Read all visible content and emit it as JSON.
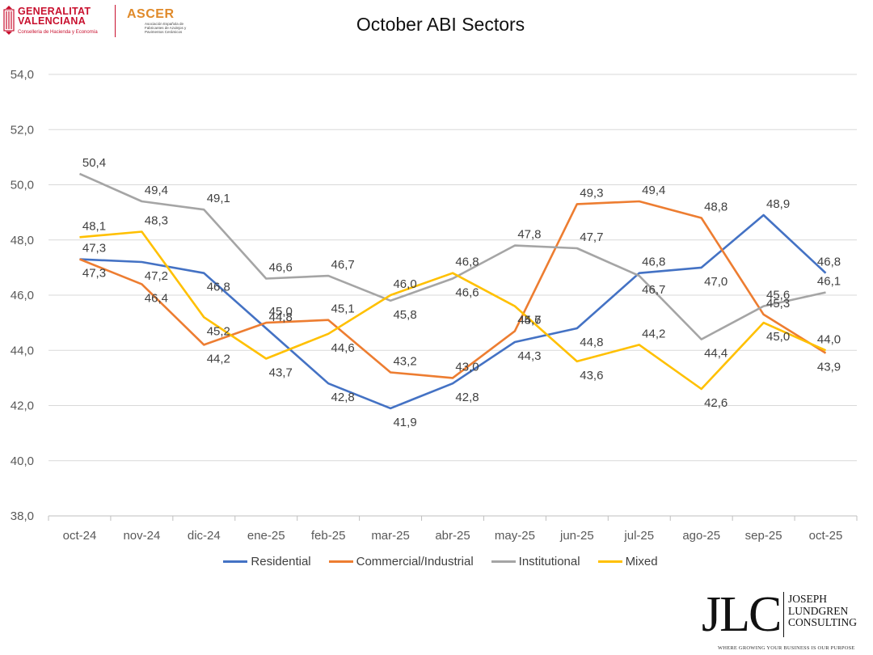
{
  "header": {
    "gv_logo_text": "GENERALITAT\nVALENCIANA",
    "gv_logo_sub": "Conselleria de Hacienda y Economía",
    "ascer_logo_text": "ASCER",
    "ascer_logo_sub": "Asociación Española de Fabricantes de Azulejos y Pavimentos Cerámicos"
  },
  "footer": {
    "jlc_letters": "JLC",
    "jlc_name": "JOSEPH\nLUNDGREN\nCONSULTING",
    "jlc_tagline": "WHERE GROWING YOUR BUSINESS IS OUR PURPOSE"
  },
  "chart_data": {
    "type": "line",
    "title": "October ABI Sectors",
    "xlabel": "",
    "ylabel": "",
    "categories": [
      "oct-24",
      "nov-24",
      "dic-24",
      "ene-25",
      "feb-25",
      "mar-25",
      "abr-25",
      "may-25",
      "jun-25",
      "jul-25",
      "ago-25",
      "sep-25",
      "oct-25"
    ],
    "ylim": [
      38,
      54
    ],
    "yticks": [
      "38,0",
      "40,0",
      "42,0",
      "44,0",
      "46,0",
      "48,0",
      "50,0",
      "52,0",
      "54,0"
    ],
    "grid": true,
    "legend_position": "bottom",
    "series": [
      {
        "name": "Residential",
        "color": "#4472c4",
        "values": [
          47.3,
          47.2,
          46.8,
          44.8,
          42.8,
          41.9,
          42.8,
          44.3,
          44.8,
          46.8,
          47.0,
          48.9,
          46.8
        ],
        "labels": [
          "47,3",
          "47,2",
          "46,8",
          "44,8",
          "42,8",
          "41,9",
          "42,8",
          "44,3",
          "44,8",
          "46,8",
          "47,0",
          "48,9",
          "46,8"
        ]
      },
      {
        "name": "Commercial/Industrial",
        "color": "#ed7d31",
        "values": [
          47.3,
          46.4,
          44.2,
          45.0,
          45.1,
          43.2,
          43.0,
          44.7,
          49.3,
          49.4,
          48.8,
          45.3,
          43.9
        ],
        "labels": [
          "47,3",
          "46,4",
          "44,2",
          "45,0",
          "45,1",
          "43,2",
          "43,0",
          "44,7",
          "49,3",
          "49,4",
          "48,8",
          "45,3",
          "43,9"
        ]
      },
      {
        "name": "Institutional",
        "color": "#a5a5a5",
        "values": [
          50.4,
          49.4,
          49.1,
          46.6,
          46.7,
          45.8,
          46.6,
          47.8,
          47.7,
          46.7,
          44.4,
          45.6,
          46.1
        ],
        "labels": [
          "50,4",
          "49,4",
          "49,1",
          "46,6",
          "46,7",
          "45,8",
          "46,6",
          "47,8",
          "47,7",
          "46,7",
          "44,4",
          "45,6",
          "46,1"
        ]
      },
      {
        "name": "Mixed",
        "color": "#ffc000",
        "values": [
          48.1,
          48.3,
          45.2,
          43.7,
          44.6,
          46.0,
          46.8,
          45.6,
          43.6,
          44.2,
          42.6,
          45.0,
          44.0
        ],
        "labels": [
          "48,1",
          "48,3",
          "45,2",
          "43,7",
          "44,6",
          "46,0",
          "46,8",
          "45,6",
          "43,6",
          "44,2",
          "42,6",
          "45,0",
          "44,0"
        ]
      }
    ]
  }
}
